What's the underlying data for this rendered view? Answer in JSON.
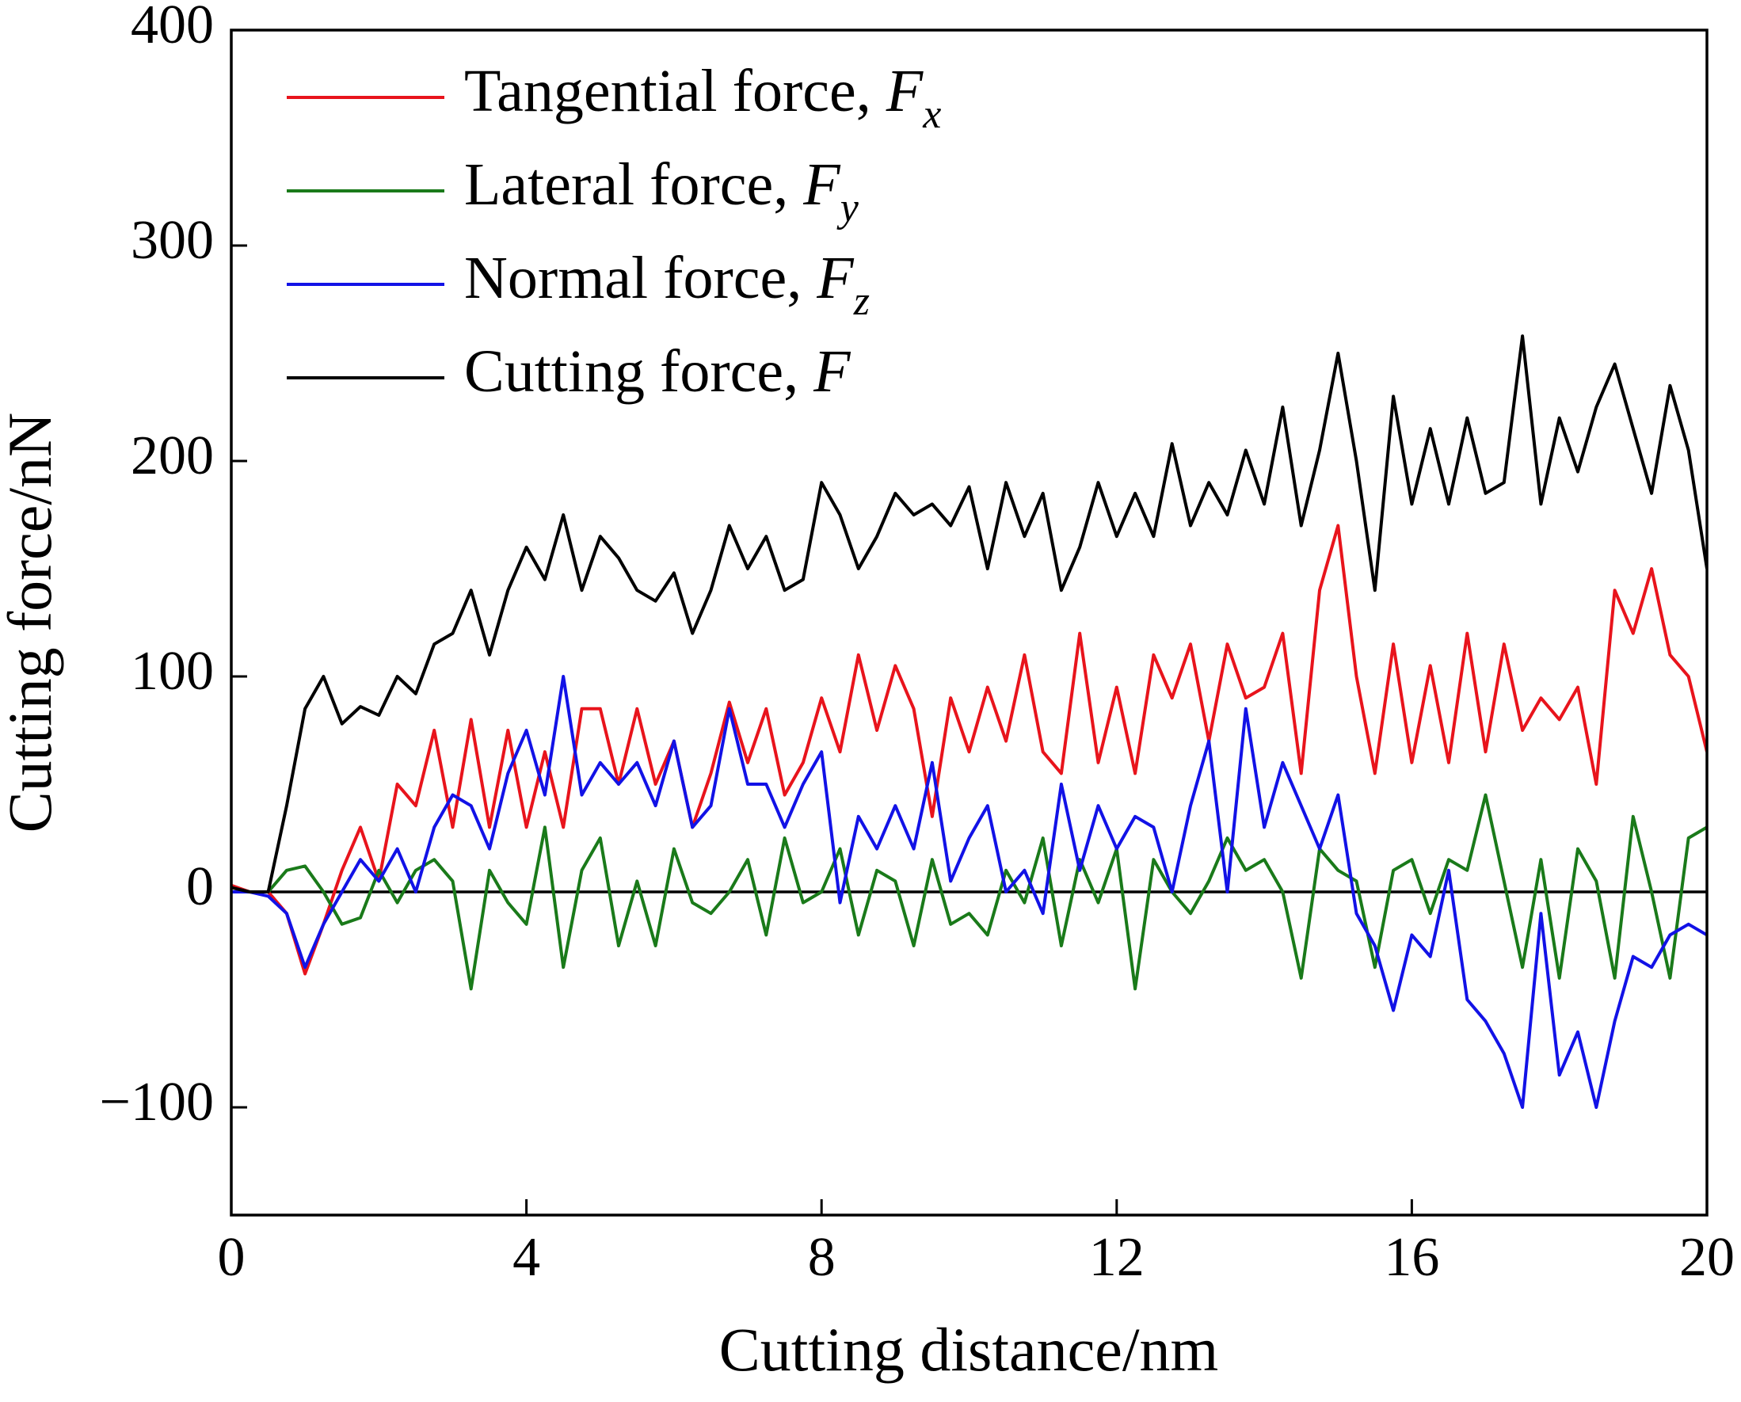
{
  "chart_data": {
    "type": "line",
    "xlabel": "Cutting distance/nm",
    "ylabel": "Cutting force/nN",
    "x": [
      0,
      0.25,
      0.5,
      0.75,
      1,
      1.25,
      1.5,
      1.75,
      2,
      2.25,
      2.5,
      2.75,
      3,
      3.25,
      3.5,
      3.75,
      4,
      4.25,
      4.5,
      4.75,
      5,
      5.25,
      5.5,
      5.75,
      6,
      6.25,
      6.5,
      6.75,
      7,
      7.25,
      7.5,
      7.75,
      8,
      8.25,
      8.5,
      8.75,
      9,
      9.25,
      9.5,
      9.75,
      10,
      10.25,
      10.5,
      10.75,
      11,
      11.25,
      11.5,
      11.75,
      12,
      12.25,
      12.5,
      12.75,
      13,
      13.25,
      13.5,
      13.75,
      14,
      14.25,
      14.5,
      14.75,
      15,
      15.25,
      15.5,
      15.75,
      16,
      16.25,
      16.5,
      16.75,
      17,
      17.25,
      17.5,
      17.75,
      18,
      18.25,
      18.5,
      18.75,
      19,
      19.25,
      19.5,
      19.75,
      20
    ],
    "series": [
      {
        "name": "Tangential force, Fx",
        "color": "#e8141c",
        "values": [
          3,
          0,
          0,
          -10,
          -38,
          -15,
          10,
          30,
          5,
          50,
          40,
          75,
          30,
          80,
          30,
          75,
          30,
          65,
          30,
          85,
          85,
          50,
          85,
          50,
          70,
          30,
          55,
          88,
          60,
          85,
          45,
          60,
          90,
          65,
          110,
          75,
          105,
          85,
          35,
          90,
          65,
          95,
          70,
          110,
          65,
          55,
          120,
          60,
          95,
          55,
          110,
          90,
          115,
          70,
          115,
          90,
          95,
          120,
          55,
          140,
          170,
          100,
          55,
          115,
          60,
          105,
          60,
          120,
          65,
          115,
          75,
          90,
          80,
          95,
          50,
          140,
          120,
          150,
          110,
          100,
          65
        ]
      },
      {
        "name": "Lateral force, Fy",
        "color": "#1a7a1a",
        "values": [
          0,
          0,
          0,
          10,
          12,
          0,
          -15,
          -12,
          10,
          -5,
          10,
          15,
          5,
          -45,
          10,
          -5,
          -15,
          30,
          -35,
          10,
          25,
          -25,
          5,
          -25,
          20,
          -5,
          -10,
          0,
          15,
          -20,
          25,
          -5,
          0,
          20,
          -20,
          10,
          5,
          -25,
          15,
          -15,
          -10,
          -20,
          10,
          -5,
          25,
          -25,
          15,
          -5,
          20,
          -45,
          15,
          0,
          -10,
          5,
          25,
          10,
          15,
          0,
          -40,
          20,
          10,
          5,
          -35,
          10,
          15,
          -10,
          15,
          10,
          45,
          5,
          -35,
          15,
          -40,
          20,
          5,
          -40,
          35,
          0,
          -40,
          25,
          30
        ]
      },
      {
        "name": "Normal force, Fz",
        "color": "#1212e6",
        "values": [
          0,
          0,
          -2,
          -10,
          -35,
          -15,
          0,
          15,
          5,
          20,
          0,
          30,
          45,
          40,
          20,
          55,
          75,
          45,
          100,
          45,
          60,
          50,
          60,
          40,
          70,
          30,
          40,
          85,
          50,
          50,
          30,
          50,
          65,
          -5,
          35,
          20,
          40,
          20,
          60,
          5,
          25,
          40,
          0,
          10,
          -10,
          50,
          10,
          40,
          20,
          35,
          30,
          0,
          40,
          70,
          0,
          85,
          30,
          60,
          40,
          20,
          45,
          -10,
          -25,
          -55,
          -20,
          -30,
          10,
          -50,
          -60,
          -75,
          -100,
          -10,
          -85,
          -65,
          -100,
          -60,
          -30,
          -35,
          -20,
          -15,
          -20
        ]
      },
      {
        "name": "Cutting force, F",
        "color": "#000000",
        "values": [
          2,
          0,
          0,
          40,
          85,
          100,
          78,
          86,
          82,
          100,
          92,
          115,
          120,
          140,
          110,
          140,
          160,
          145,
          175,
          140,
          165,
          155,
          140,
          135,
          148,
          120,
          140,
          170,
          150,
          165,
          140,
          145,
          190,
          175,
          150,
          165,
          185,
          175,
          180,
          170,
          188,
          150,
          190,
          165,
          185,
          140,
          160,
          190,
          165,
          185,
          165,
          208,
          170,
          190,
          175,
          205,
          180,
          225,
          170,
          205,
          250,
          200,
          140,
          230,
          180,
          215,
          180,
          220,
          185,
          190,
          258,
          180,
          220,
          195,
          225,
          245,
          215,
          185,
          235,
          205,
          150
        ]
      }
    ],
    "hlines": [
      0
    ],
    "xlim": [
      0,
      20
    ],
    "xticks": [
      0,
      4,
      8,
      12,
      16,
      20
    ],
    "ylim": [
      -150,
      400
    ],
    "yticks": [
      {
        "value": -100,
        "label": "−100"
      },
      0,
      100,
      200,
      300,
      400
    ],
    "legend": "upper left"
  }
}
